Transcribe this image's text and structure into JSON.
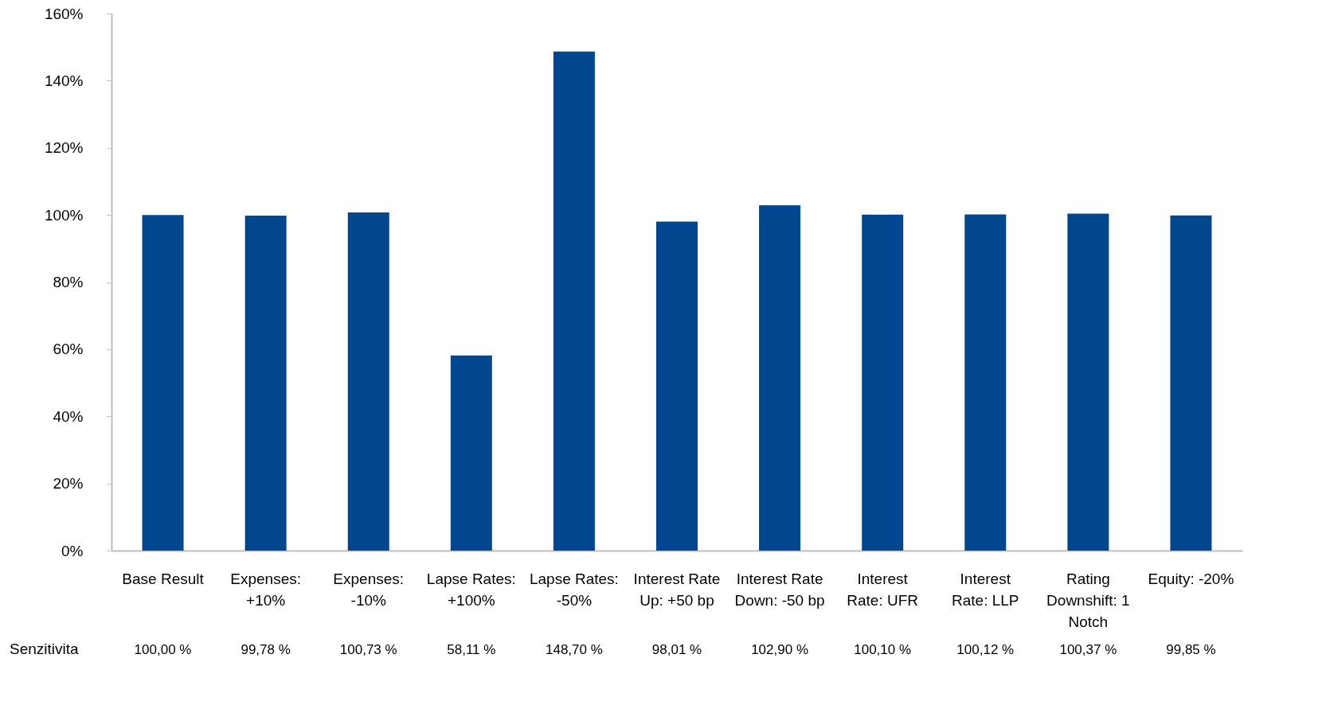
{
  "chart_data": {
    "type": "bar",
    "categories": [
      "Base Result",
      "Expenses: +10%",
      "Expenses: -10%",
      "Lapse Rates: +100%",
      "Lapse Rates: -50%",
      "Interest Rate Up: +50 bp",
      "Interest Rate Down:  -50 bp",
      "Interest Rate: UFR",
      "Interest Rate: LLP",
      "Rating Downshift: 1 Notch",
      "Equity: -20%"
    ],
    "series": [
      {
        "name": "Senzitivita",
        "color": "#00478f",
        "values": [
          100.0,
          99.78,
          100.73,
          58.11,
          148.7,
          98.01,
          102.9,
          100.1,
          100.12,
          100.37,
          99.85
        ],
        "value_labels": [
          "100,00 %",
          "99,78 %",
          "100,73 %",
          "58,11 %",
          "148,70 %",
          "98,01 %",
          "102,90 %",
          "100,10 %",
          "100,12 %",
          "100,37 %",
          "99,85 %"
        ]
      }
    ],
    "ylim": [
      0,
      160
    ],
    "yticks": [
      {
        "value": 0,
        "label": "0%"
      },
      {
        "value": 20,
        "label": "20%"
      },
      {
        "value": 40,
        "label": "40%"
      },
      {
        "value": 60,
        "label": "60%"
      },
      {
        "value": 80,
        "label": "80%"
      },
      {
        "value": 100,
        "label": "100%"
      },
      {
        "value": 120,
        "label": "120%"
      },
      {
        "value": 140,
        "label": "140%"
      },
      {
        "value": 160,
        "label": "160%"
      }
    ],
    "grid": false
  }
}
